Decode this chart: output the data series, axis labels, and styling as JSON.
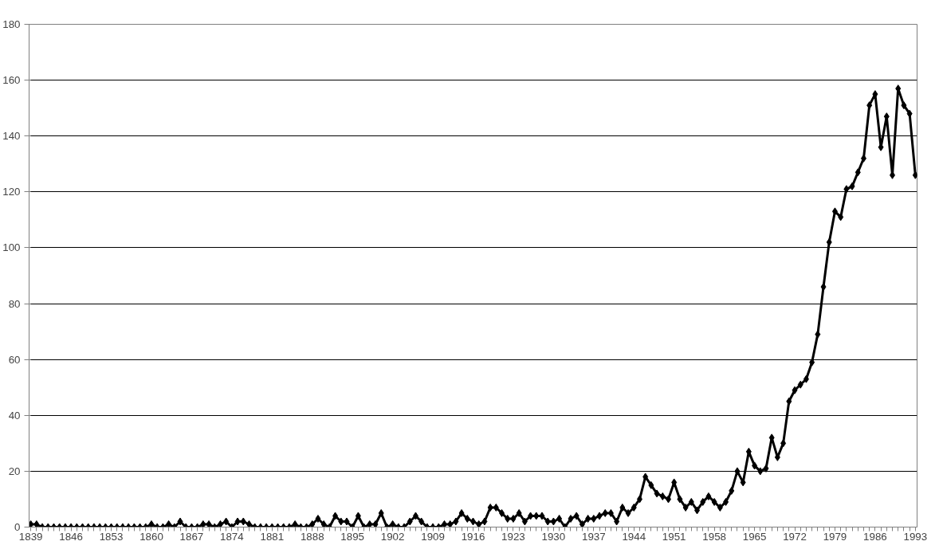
{
  "chart_data": {
    "type": "line",
    "marker": "diamond",
    "line_style": "solid",
    "grid": "y",
    "categories": [
      "1839",
      null,
      null,
      null,
      null,
      null,
      null,
      "1846",
      null,
      null,
      null,
      null,
      null,
      null,
      "1853",
      null,
      null,
      null,
      null,
      null,
      null,
      "1860",
      null,
      null,
      null,
      null,
      null,
      null,
      "1867",
      null,
      null,
      null,
      null,
      null,
      null,
      "1874",
      null,
      null,
      null,
      null,
      null,
      null,
      "1881",
      null,
      null,
      null,
      null,
      null,
      null,
      "1888",
      null,
      null,
      null,
      null,
      null,
      null,
      "1895",
      null,
      null,
      null,
      null,
      null,
      null,
      "1902",
      null,
      null,
      null,
      null,
      null,
      null,
      "1909",
      null,
      null,
      null,
      null,
      null,
      null,
      "1916",
      null,
      null,
      null,
      null,
      null,
      null,
      "1923",
      null,
      null,
      null,
      null,
      null,
      null,
      "1930",
      null,
      null,
      null,
      null,
      null,
      null,
      "1937",
      null,
      null,
      null,
      null,
      null,
      null,
      "1944",
      null,
      null,
      null,
      null,
      null,
      null,
      "1951",
      null,
      null,
      null,
      null,
      null,
      null,
      "1958",
      null,
      null,
      null,
      null,
      null,
      null,
      "1965",
      null,
      null,
      null,
      null,
      null,
      null,
      "1972",
      null,
      null,
      null,
      null,
      null,
      null,
      "1979",
      null,
      null,
      null,
      null,
      null,
      null,
      "1986",
      null,
      null,
      null,
      null,
      null,
      null,
      "1993"
    ],
    "series": [
      {
        "color": "#000000",
        "values": [
          1,
          1,
          0,
          0,
          0,
          0,
          0,
          0,
          0,
          0,
          0,
          0,
          0,
          0,
          0,
          0,
          0,
          0,
          0,
          0,
          0,
          1,
          0,
          0,
          1,
          0,
          2,
          0,
          0,
          0,
          1,
          1,
          0,
          1,
          2,
          0,
          2,
          2,
          1,
          0,
          0,
          0,
          0,
          0,
          0,
          0,
          1,
          0,
          0,
          1,
          3,
          1,
          0,
          4,
          2,
          2,
          0,
          4,
          0,
          1,
          1,
          5,
          0,
          1,
          0,
          0,
          2,
          4,
          2,
          0,
          0,
          0,
          1,
          1,
          2,
          5,
          3,
          2,
          1,
          2,
          7,
          7,
          5,
          3,
          3,
          5,
          2,
          4,
          4,
          4,
          2,
          2,
          3,
          0,
          3,
          4,
          1,
          3,
          3,
          4,
          5,
          5,
          2,
          7,
          5,
          7,
          10,
          18,
          15,
          12,
          11,
          10,
          16,
          10,
          7,
          9,
          6,
          9,
          11,
          9,
          7,
          9,
          13,
          20,
          16,
          27,
          22,
          20,
          21,
          32,
          25,
          30,
          45,
          49,
          51,
          53,
          59,
          69,
          86,
          102,
          113,
          111,
          121,
          122,
          127,
          132,
          151,
          155,
          136,
          147,
          126,
          157,
          151,
          148,
          126
        ]
      }
    ],
    "ylim": [
      0,
      180
    ],
    "yticks": [
      0,
      20,
      40,
      60,
      80,
      100,
      120,
      140,
      160,
      180
    ]
  }
}
